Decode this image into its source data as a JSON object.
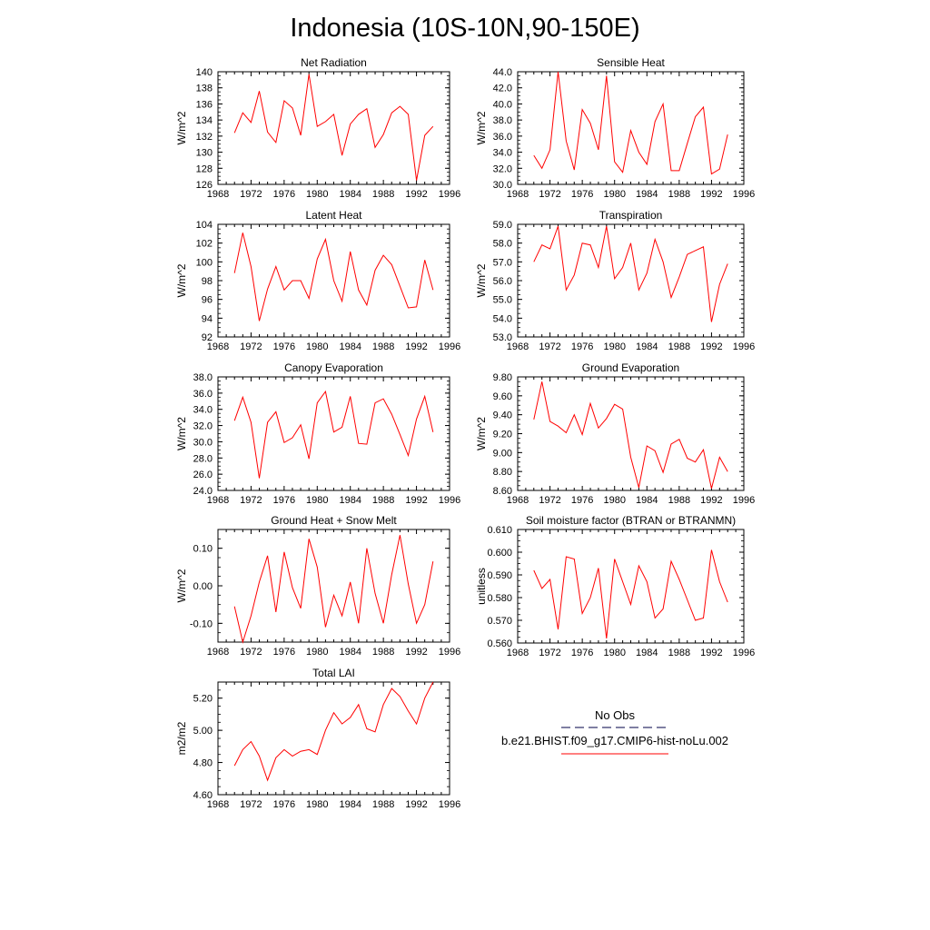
{
  "title": "Indonesia (10S-10N,90-150E)",
  "legend": {
    "obs_label": "No Obs",
    "obs_color": "#33336b",
    "model_label": "b.e21.BHIST.f09_g17.CMIP6-hist-noLu.002",
    "model_color": "#ff0000"
  },
  "chart_data": [
    {
      "type": "line",
      "title": "Net Radiation",
      "ylabel": "W/m^2",
      "xlim": [
        1968,
        1996
      ],
      "ylim": [
        126,
        140
      ],
      "xticks": [
        "1968",
        "1972",
        "1976",
        "1980",
        "1984",
        "1988",
        "1992",
        "1996"
      ],
      "yticks": [
        "126",
        "128",
        "130",
        "132",
        "134",
        "136",
        "138",
        "140"
      ],
      "x": [
        1970,
        1971,
        1972,
        1973,
        1974,
        1975,
        1976,
        1977,
        1978,
        1979,
        1980,
        1981,
        1982,
        1983,
        1984,
        1985,
        1986,
        1987,
        1988,
        1989,
        1990,
        1991,
        1992,
        1993,
        1994
      ],
      "series": [
        {
          "name": "b.e21.BHIST.f09_g17.CMIP6-hist-noLu.002",
          "values": [
            132.4,
            134.9,
            133.7,
            137.6,
            132.5,
            131.2,
            136.4,
            135.5,
            132.1,
            139.7,
            133.2,
            133.8,
            134.7,
            129.6,
            133.5,
            134.7,
            135.4,
            130.6,
            132.2,
            134.9,
            135.7,
            134.7,
            126.5,
            132.1,
            133.2
          ]
        }
      ]
    },
    {
      "type": "line",
      "title": "Sensible Heat",
      "ylabel": "W/m^2",
      "xlim": [
        1968,
        1996
      ],
      "ylim": [
        30,
        44
      ],
      "xticks": [
        "1968",
        "1972",
        "1976",
        "1980",
        "1984",
        "1988",
        "1992",
        "1996"
      ],
      "yticks": [
        "30.0",
        "32.0",
        "34.0",
        "36.0",
        "38.0",
        "40.0",
        "42.0",
        "44.0"
      ],
      "x": [
        1970,
        1971,
        1972,
        1973,
        1974,
        1975,
        1976,
        1977,
        1978,
        1979,
        1980,
        1981,
        1982,
        1983,
        1984,
        1985,
        1986,
        1987,
        1988,
        1989,
        1990,
        1991,
        1992,
        1993,
        1994
      ],
      "series": [
        {
          "name": "b.e21.BHIST.f09_g17.CMIP6-hist-noLu.002",
          "values": [
            33.6,
            32.0,
            34.3,
            44.0,
            35.4,
            31.8,
            39.3,
            37.6,
            34.3,
            43.5,
            32.8,
            31.5,
            36.7,
            34.0,
            32.5,
            37.8,
            40.0,
            31.7,
            31.7,
            35.1,
            38.4,
            39.6,
            31.3,
            31.9,
            36.2
          ]
        }
      ]
    },
    {
      "type": "line",
      "title": "Latent Heat",
      "ylabel": "W/m^2",
      "xlim": [
        1968,
        1996
      ],
      "ylim": [
        92,
        104
      ],
      "xticks": [
        "1968",
        "1972",
        "1976",
        "1980",
        "1984",
        "1988",
        "1992",
        "1996"
      ],
      "yticks": [
        "92",
        "94",
        "96",
        "98",
        "100",
        "102",
        "104"
      ],
      "x": [
        1970,
        1971,
        1972,
        1973,
        1974,
        1975,
        1976,
        1977,
        1978,
        1979,
        1980,
        1981,
        1982,
        1983,
        1984,
        1985,
        1986,
        1987,
        1988,
        1989,
        1990,
        1991,
        1992,
        1993,
        1994
      ],
      "series": [
        {
          "name": "b.e21.BHIST.f09_g17.CMIP6-hist-noLu.002",
          "values": [
            98.8,
            103.1,
            99.5,
            93.7,
            97.1,
            99.5,
            97.0,
            98.0,
            98.0,
            96.1,
            100.3,
            102.4,
            98.0,
            95.8,
            101.1,
            97.0,
            95.4,
            99.1,
            100.7,
            99.7,
            97.4,
            95.1,
            95.2,
            100.2,
            97.0
          ]
        }
      ]
    },
    {
      "type": "line",
      "title": "Transpiration",
      "ylabel": "W/m^2",
      "xlim": [
        1968,
        1996
      ],
      "ylim": [
        53,
        59
      ],
      "xticks": [
        "1968",
        "1972",
        "1976",
        "1980",
        "1984",
        "1988",
        "1992",
        "1996"
      ],
      "yticks": [
        "53.0",
        "54.0",
        "55.0",
        "56.0",
        "57.0",
        "58.0",
        "59.0"
      ],
      "x": [
        1970,
        1971,
        1972,
        1973,
        1974,
        1975,
        1976,
        1977,
        1978,
        1979,
        1980,
        1981,
        1982,
        1983,
        1984,
        1985,
        1986,
        1987,
        1988,
        1989,
        1990,
        1991,
        1992,
        1993,
        1994
      ],
      "series": [
        {
          "name": "b.e21.BHIST.f09_g17.CMIP6-hist-noLu.002",
          "values": [
            57.0,
            57.9,
            57.7,
            58.9,
            55.5,
            56.3,
            58.0,
            57.9,
            56.7,
            58.9,
            56.1,
            56.7,
            58.0,
            55.5,
            56.4,
            58.2,
            57.0,
            55.1,
            56.2,
            57.4,
            57.6,
            57.8,
            53.8,
            55.8,
            56.9
          ]
        }
      ]
    },
    {
      "type": "line",
      "title": "Canopy Evaporation",
      "ylabel": "W/m^2",
      "xlim": [
        1968,
        1996
      ],
      "ylim": [
        24,
        38
      ],
      "xticks": [
        "1968",
        "1972",
        "1976",
        "1980",
        "1984",
        "1988",
        "1992",
        "1996"
      ],
      "yticks": [
        "24.0",
        "26.0",
        "28.0",
        "30.0",
        "32.0",
        "34.0",
        "36.0",
        "38.0"
      ],
      "x": [
        1970,
        1971,
        1972,
        1973,
        1974,
        1975,
        1976,
        1977,
        1978,
        1979,
        1980,
        1981,
        1982,
        1983,
        1984,
        1985,
        1986,
        1987,
        1988,
        1989,
        1990,
        1991,
        1992,
        1993,
        1994
      ],
      "series": [
        {
          "name": "b.e21.BHIST.f09_g17.CMIP6-hist-noLu.002",
          "values": [
            32.6,
            35.5,
            32.4,
            25.5,
            32.4,
            33.7,
            29.9,
            30.5,
            32.1,
            27.9,
            34.8,
            36.2,
            31.2,
            31.8,
            35.6,
            29.8,
            29.7,
            34.8,
            35.3,
            33.4,
            30.9,
            28.3,
            32.8,
            35.6,
            31.2
          ]
        }
      ]
    },
    {
      "type": "line",
      "title": "Ground Evaporation",
      "ylabel": "W/m^2",
      "xlim": [
        1968,
        1996
      ],
      "ylim": [
        8.6,
        9.8
      ],
      "xticks": [
        "1968",
        "1972",
        "1976",
        "1980",
        "1984",
        "1988",
        "1992",
        "1996"
      ],
      "yticks": [
        "8.60",
        "8.80",
        "9.00",
        "9.20",
        "9.40",
        "9.60",
        "9.80"
      ],
      "x": [
        1970,
        1971,
        1972,
        1973,
        1974,
        1975,
        1976,
        1977,
        1978,
        1979,
        1980,
        1981,
        1982,
        1983,
        1984,
        1985,
        1986,
        1987,
        1988,
        1989,
        1990,
        1991,
        1992,
        1993,
        1994
      ],
      "series": [
        {
          "name": "b.e21.BHIST.f09_g17.CMIP6-hist-noLu.002",
          "values": [
            9.35,
            9.75,
            9.33,
            9.28,
            9.21,
            9.4,
            9.19,
            9.52,
            9.26,
            9.36,
            9.51,
            9.46,
            8.95,
            8.63,
            9.07,
            9.02,
            8.79,
            9.09,
            9.14,
            8.94,
            8.9,
            9.03,
            8.62,
            8.95,
            8.8
          ]
        }
      ]
    },
    {
      "type": "line",
      "title": "Ground Heat + Snow Melt",
      "ylabel": "W/m^2",
      "xlim": [
        1968,
        1996
      ],
      "ylim": [
        -0.15,
        0.15
      ],
      "xticks": [
        "1968",
        "1972",
        "1976",
        "1980",
        "1984",
        "1988",
        "1992",
        "1996"
      ],
      "yticks": [
        "-0.10",
        "0.00",
        "0.10"
      ],
      "x": [
        1970,
        1971,
        1972,
        1973,
        1974,
        1975,
        1976,
        1977,
        1978,
        1979,
        1980,
        1981,
        1982,
        1983,
        1984,
        1985,
        1986,
        1987,
        1988,
        1989,
        1990,
        1991,
        1992,
        1993,
        1994
      ],
      "series": [
        {
          "name": "b.e21.BHIST.f09_g17.CMIP6-hist-noLu.002",
          "values": [
            -0.055,
            -0.15,
            -0.08,
            0.01,
            0.08,
            -0.07,
            0.09,
            -0.005,
            -0.06,
            0.125,
            0.05,
            -0.11,
            -0.025,
            -0.08,
            0.01,
            -0.1,
            0.1,
            -0.02,
            -0.1,
            0.03,
            0.135,
            0.005,
            -0.1,
            -0.05,
            0.065
          ]
        }
      ]
    },
    {
      "type": "line",
      "title": "Soil moisture factor (BTRAN or BTRANMN)",
      "ylabel": "unitless",
      "xlim": [
        1968,
        1996
      ],
      "ylim": [
        0.56,
        0.61
      ],
      "xticks": [
        "1968",
        "1972",
        "1976",
        "1980",
        "1984",
        "1988",
        "1992",
        "1996"
      ],
      "yticks": [
        "0.560",
        "0.570",
        "0.580",
        "0.590",
        "0.600",
        "0.610"
      ],
      "x": [
        1970,
        1971,
        1972,
        1973,
        1974,
        1975,
        1976,
        1977,
        1978,
        1979,
        1980,
        1981,
        1982,
        1983,
        1984,
        1985,
        1986,
        1987,
        1988,
        1989,
        1990,
        1991,
        1992,
        1993,
        1994
      ],
      "series": [
        {
          "name": "b.e21.BHIST.f09_g17.CMIP6-hist-noLu.002",
          "values": [
            0.592,
            0.584,
            0.588,
            0.566,
            0.598,
            0.597,
            0.573,
            0.58,
            0.593,
            0.562,
            0.597,
            0.587,
            0.577,
            0.594,
            0.587,
            0.571,
            0.575,
            0.596,
            0.588,
            0.579,
            0.57,
            0.571,
            0.601,
            0.587,
            0.578
          ]
        }
      ]
    },
    {
      "type": "line",
      "title": "Total LAI",
      "ylabel": "m2/m2",
      "xlim": [
        1968,
        1996
      ],
      "ylim": [
        4.6,
        5.3
      ],
      "xticks": [
        "1968",
        "1972",
        "1976",
        "1980",
        "1984",
        "1988",
        "1992",
        "1996"
      ],
      "yticks": [
        "4.60",
        "4.80",
        "5.00",
        "5.20"
      ],
      "x": [
        1970,
        1971,
        1972,
        1973,
        1974,
        1975,
        1976,
        1977,
        1978,
        1979,
        1980,
        1981,
        1982,
        1983,
        1984,
        1985,
        1986,
        1987,
        1988,
        1989,
        1990,
        1991,
        1992,
        1993,
        1994
      ],
      "series": [
        {
          "name": "b.e21.BHIST.f09_g17.CMIP6-hist-noLu.002",
          "values": [
            4.78,
            4.88,
            4.93,
            4.84,
            4.69,
            4.83,
            4.88,
            4.84,
            4.87,
            4.88,
            4.85,
            5.0,
            5.11,
            5.04,
            5.08,
            5.16,
            5.01,
            4.99,
            5.16,
            5.26,
            5.21,
            5.12,
            5.04,
            5.2,
            5.3
          ]
        }
      ]
    }
  ]
}
